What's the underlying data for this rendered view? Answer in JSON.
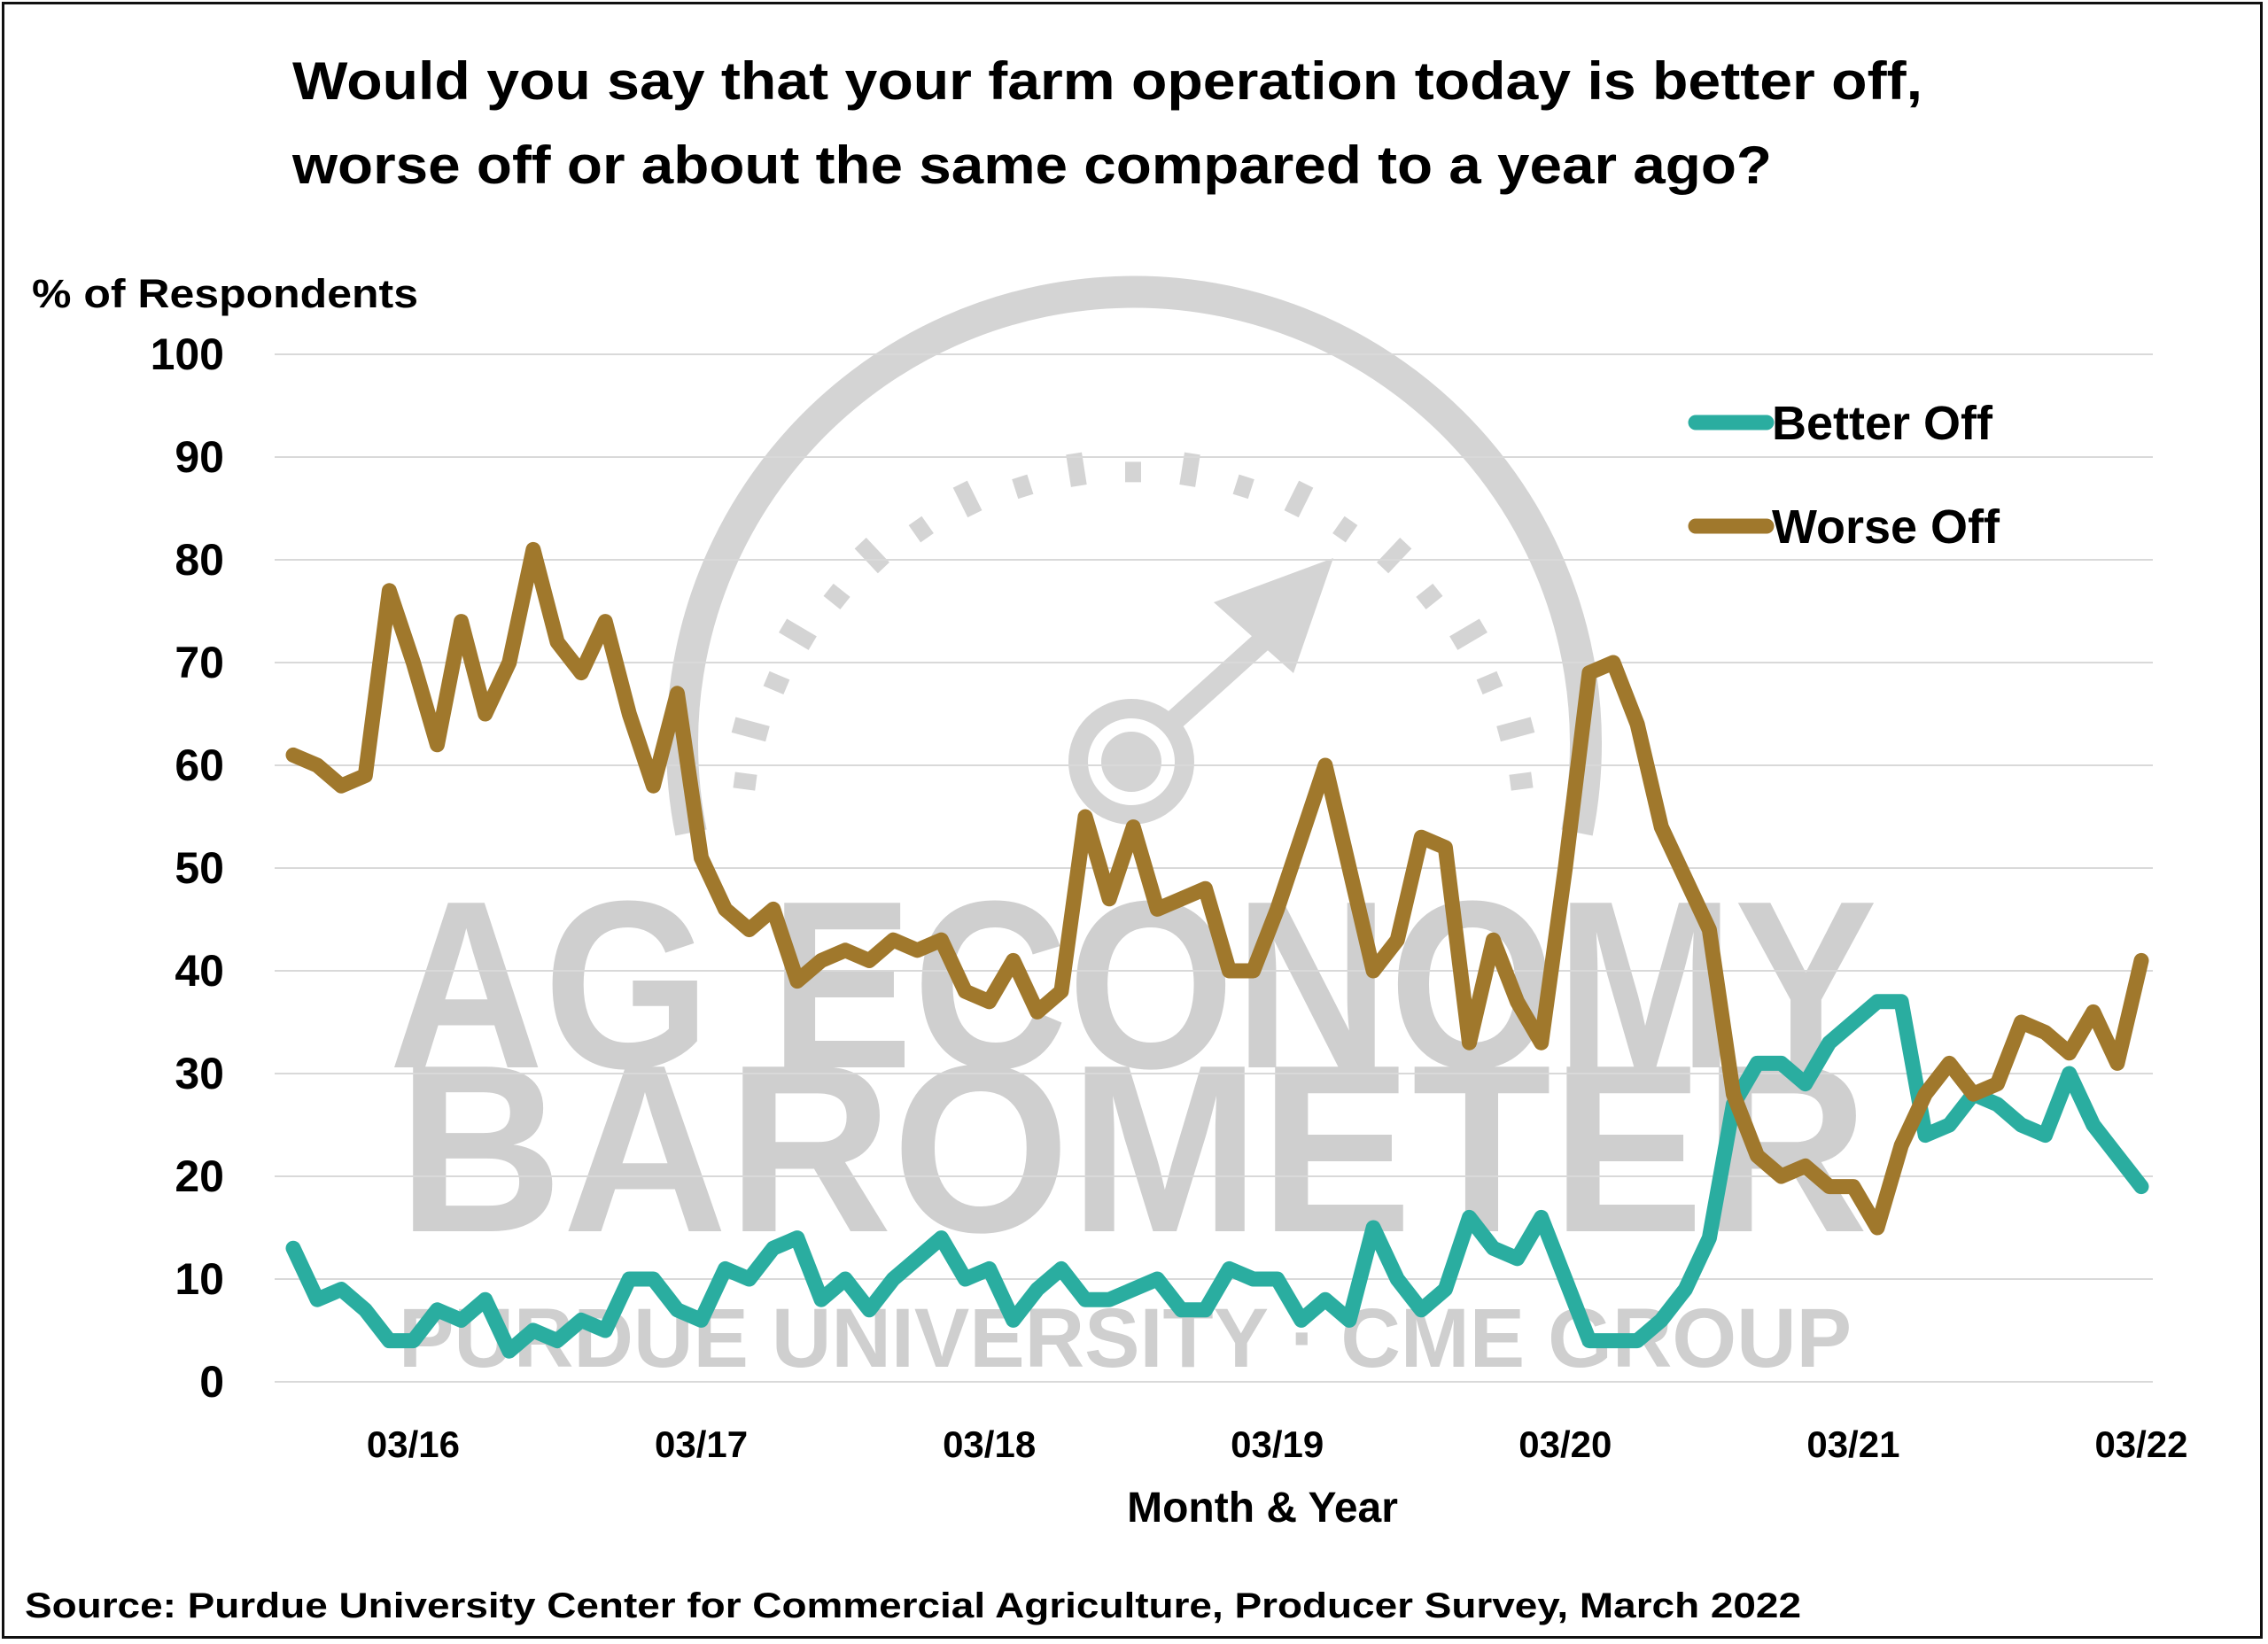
{
  "chart_data": {
    "type": "line",
    "title": "Would you say that your farm operation today is better off, worse off or about the same compared to a year ago?",
    "title_lines": [
      "Would you say that your farm operation today is better off,",
      "worse off or about the same compared to a year ago?"
    ],
    "ylabel": "% of Respondents",
    "xlabel": "Month & Year",
    "ylim": [
      0,
      100
    ],
    "yticks": [
      "0",
      "10",
      "20",
      "30",
      "40",
      "50",
      "60",
      "70",
      "80",
      "90",
      "100"
    ],
    "xticks": [
      "03/16",
      "03/17",
      "03/18",
      "03/19",
      "03/20",
      "03/21",
      "03/22"
    ],
    "grid": true,
    "legend_placement": "top-right",
    "x": [
      "10/15",
      "11/15",
      "12/15",
      "01/16",
      "02/16",
      "03/16",
      "04/16",
      "05/16",
      "06/16",
      "07/16",
      "08/16",
      "09/16",
      "10/16",
      "11/16",
      "12/16",
      "01/17",
      "02/17",
      "03/17",
      "04/17",
      "05/17",
      "06/17",
      "07/17",
      "08/17",
      "09/17",
      "10/17",
      "11/17",
      "12/17",
      "01/18",
      "02/18",
      "03/18",
      "04/18",
      "05/18",
      "06/18",
      "07/18",
      "08/18",
      "09/18",
      "10/18",
      "11/18",
      "12/18",
      "01/19",
      "02/19",
      "03/19",
      "04/19",
      "05/19",
      "06/19",
      "07/19",
      "08/19",
      "09/19",
      "10/19",
      "11/19",
      "12/19",
      "01/20",
      "02/20",
      "03/20",
      "04/20",
      "05/20",
      "06/20",
      "07/20",
      "08/20",
      "09/20",
      "10/20",
      "11/20",
      "12/20",
      "01/21",
      "02/21",
      "03/21",
      "04/21",
      "05/21",
      "06/21",
      "07/21",
      "08/21",
      "09/21",
      "10/21",
      "11/21",
      "12/21",
      "01/22",
      "02/22",
      "03/22"
    ],
    "series": [
      {
        "name": "Better Off",
        "color": "#2aada0",
        "values": [
          13,
          8,
          9,
          7,
          4,
          4,
          7,
          6,
          8,
          3,
          5,
          4,
          6,
          5,
          10,
          10,
          7,
          6,
          11,
          10,
          13,
          14,
          8,
          10,
          7,
          10,
          12,
          14,
          10,
          11,
          6,
          9,
          11,
          8,
          8,
          9,
          10,
          7,
          7,
          11,
          10,
          10,
          6,
          8,
          6,
          15,
          10,
          7,
          9,
          16,
          13,
          12,
          16,
          10,
          4,
          4,
          4,
          6,
          9,
          14,
          27,
          31,
          31,
          29,
          33,
          35,
          37,
          37,
          24,
          25,
          28,
          27,
          25,
          24,
          30,
          25,
          22,
          19
        ]
      },
      {
        "name": "Worse Off",
        "color": "#a0782c",
        "values": [
          61,
          60,
          58,
          59,
          77,
          70,
          62,
          74,
          65,
          70,
          81,
          72,
          69,
          74,
          65,
          58,
          67,
          51,
          46,
          44,
          46,
          39,
          41,
          42,
          41,
          43,
          42,
          43,
          38,
          37,
          41,
          36,
          38,
          55,
          47,
          54,
          46,
          47,
          48,
          40,
          40,
          46,
          53,
          60,
          50,
          40,
          43,
          53,
          52,
          33,
          43,
          37,
          33,
          50,
          69,
          70,
          64,
          54,
          49,
          44,
          28,
          22,
          20,
          21,
          19,
          19,
          15,
          23,
          28,
          31,
          28,
          29,
          35,
          34,
          32,
          36,
          31,
          41
        ]
      }
    ]
  },
  "source": "Source: Purdue University Center for Commercial Agriculture, Producer Survey, March 2022",
  "watermark": {
    "line1": "AG ECONOMY",
    "line2": "BAROMETER",
    "line3": "PURDUE UNIVERSITY · CME GROUP",
    "color": "#cfcfcf"
  }
}
